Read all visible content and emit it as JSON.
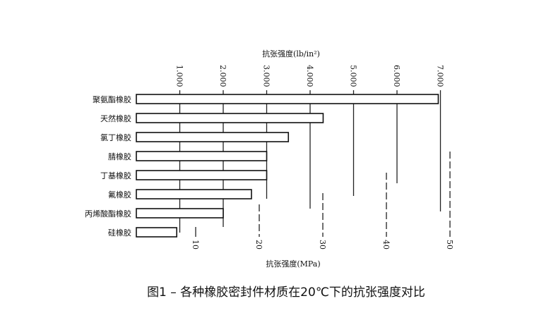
{
  "chart_data": {
    "type": "bar",
    "orientation": "horizontal",
    "title": "图1 – 各种橡胶密封件材质在20℃下的抗张强度对比",
    "xlabel_top": "抗张强度(lb/in²)",
    "xlabel_bottom": "抗张强度(MPa)",
    "categories": [
      "聚氨酯橡胶",
      "天然橡胶",
      "氯丁橡胶",
      "腈橡胶",
      "丁基橡胶",
      "氟橡胶",
      "丙烯酸酯橡胶",
      "硅橡胶"
    ],
    "values": [
      6950,
      4300,
      3500,
      3000,
      3000,
      2650,
      2000,
      930
    ],
    "unit": "lb/in²",
    "top_ticks": [
      "1.000",
      "2.000",
      "3.000",
      "4.000",
      "5.000",
      "6.000",
      "7.000"
    ],
    "top_tick_values": [
      1000,
      2000,
      3000,
      4000,
      5000,
      6000,
      7000
    ],
    "bottom_ticks": [
      "10",
      "20",
      "30",
      "40",
      "50"
    ],
    "bottom_tick_values": [
      10,
      20,
      30,
      40,
      50
    ],
    "xlim": [
      0,
      7000
    ],
    "grid": true,
    "bar_color": "#ffffff",
    "bar_edge_color": "#111111"
  }
}
